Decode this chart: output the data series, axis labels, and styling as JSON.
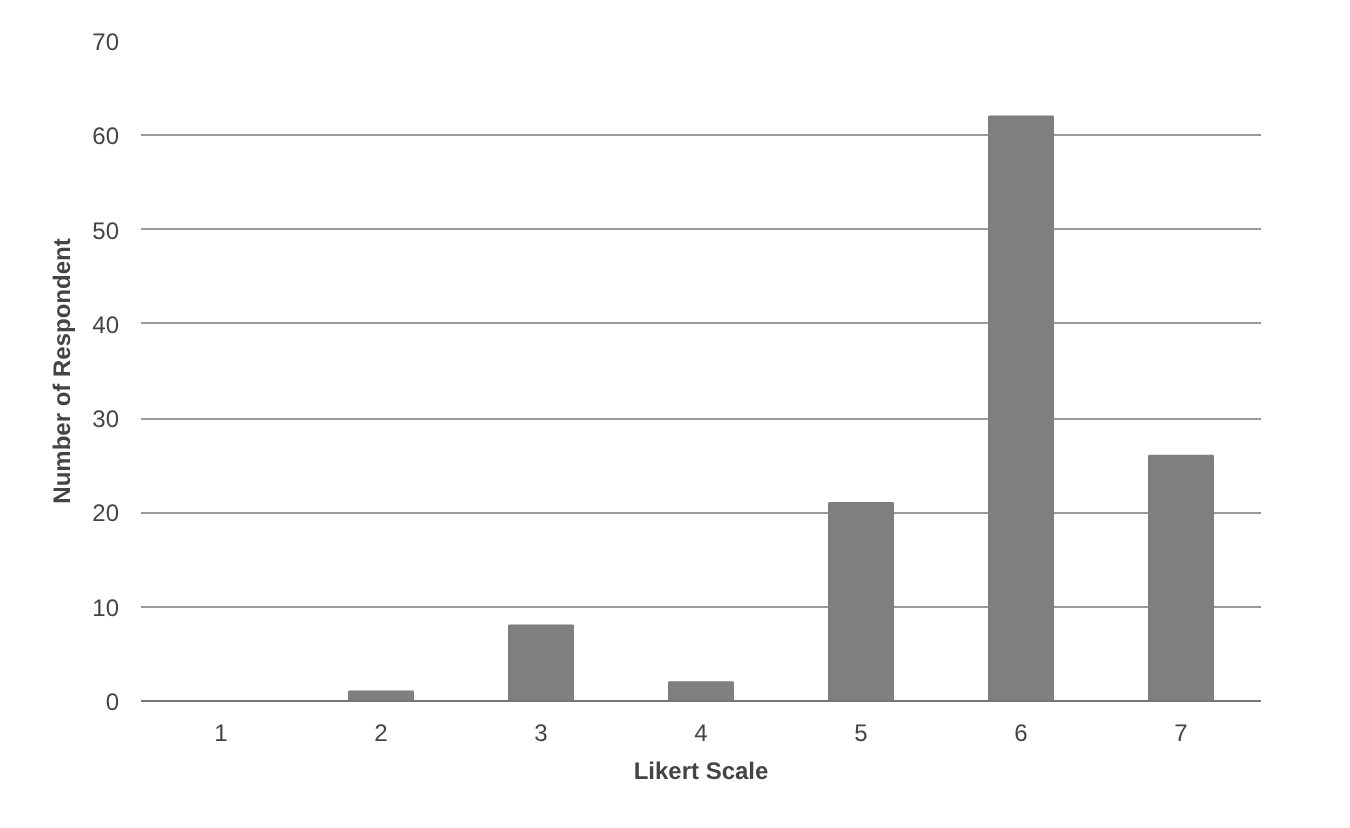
{
  "chart_data": {
    "type": "bar",
    "xlabel": "Likert Scale",
    "ylabel": "Number of Respondent",
    "categories": [
      "1",
      "2",
      "3",
      "4",
      "5",
      "6",
      "7"
    ],
    "values": [
      0,
      1,
      8,
      2,
      21,
      62,
      26
    ],
    "color": "#7f7f7f",
    "ylim": [
      0,
      70
    ],
    "yticks": [
      0,
      10,
      20,
      30,
      40,
      50,
      60,
      70
    ],
    "grid": "y"
  }
}
